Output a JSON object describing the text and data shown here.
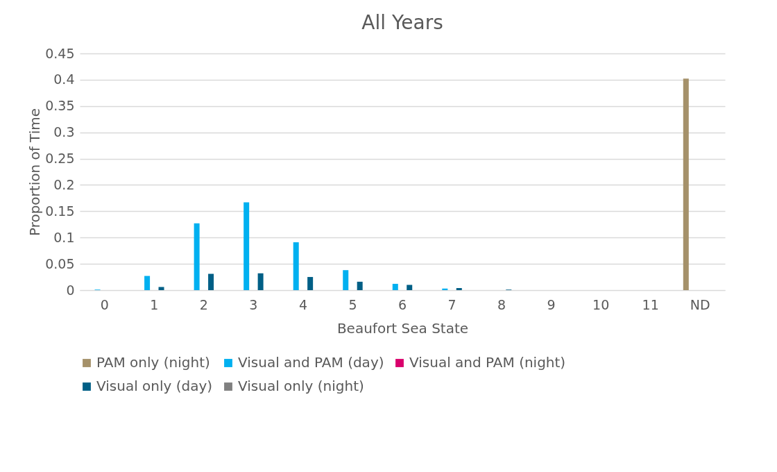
{
  "chart_data": {
    "type": "bar",
    "title": "All Years",
    "xlabel": "Beaufort Sea State",
    "ylabel": "Proportion of Time",
    "categories": [
      "0",
      "1",
      "2",
      "3",
      "4",
      "5",
      "6",
      "7",
      "8",
      "9",
      "10",
      "11",
      "ND"
    ],
    "series": [
      {
        "name": "PAM only (night)",
        "color": "#a5916a",
        "values": [
          0,
          0,
          0,
          0,
          0,
          0,
          0,
          0,
          0,
          0,
          0,
          0,
          0.402
        ]
      },
      {
        "name": "Visual and PAM (day)",
        "color": "#00b0f0",
        "values": [
          0.001,
          0.027,
          0.127,
          0.167,
          0.091,
          0.038,
          0.012,
          0.003,
          0,
          0,
          0,
          0,
          0
        ]
      },
      {
        "name": "Visual and PAM (night)",
        "color": "#d9006c",
        "values": [
          0,
          0,
          0,
          0,
          0,
          0,
          0,
          0,
          0,
          0,
          0,
          0,
          0
        ]
      },
      {
        "name": "Visual only (day)",
        "color": "#005f86",
        "values": [
          0,
          0.006,
          0.031,
          0.032,
          0.025,
          0.016,
          0.01,
          0.004,
          0.001,
          0,
          0,
          0,
          0
        ]
      },
      {
        "name": "Visual only (night)",
        "color": "#808080",
        "values": [
          0,
          0,
          0,
          0,
          0,
          0,
          0,
          0,
          0,
          0,
          0,
          0,
          0
        ]
      }
    ],
    "ylim": [
      0,
      0.45
    ],
    "yticks": [
      0,
      0.05,
      0.1,
      0.15,
      0.2,
      0.25,
      0.3,
      0.35,
      0.4,
      0.45
    ],
    "grid": "y",
    "legend": "bottom"
  }
}
